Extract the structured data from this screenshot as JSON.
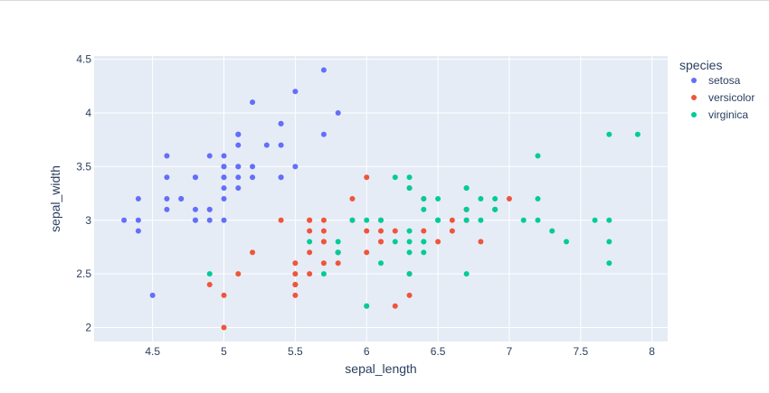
{
  "chart_data": {
    "type": "scatter",
    "title": "",
    "xlabel": "sepal_length",
    "ylabel": "sepal_width",
    "xlim": [
      4.09,
      8.11
    ],
    "ylim": [
      1.87,
      4.53
    ],
    "x_ticks": [
      "4.5",
      "5",
      "5.5",
      "6",
      "6.5",
      "7",
      "7.5",
      "8"
    ],
    "x_tick_values": [
      4.5,
      5,
      5.5,
      6,
      6.5,
      7,
      7.5,
      8
    ],
    "y_ticks": [
      "2",
      "2.5",
      "3",
      "3.5",
      "4",
      "4.5"
    ],
    "y_tick_values": [
      2,
      2.5,
      3,
      3.5,
      4,
      4.5
    ],
    "grid": true,
    "legend": {
      "title": "species",
      "position": "right"
    },
    "series": [
      {
        "name": "setosa",
        "color": "#636efa",
        "points": [
          [
            5.1,
            3.5
          ],
          [
            4.9,
            3.0
          ],
          [
            4.7,
            3.2
          ],
          [
            4.6,
            3.1
          ],
          [
            5.0,
            3.6
          ],
          [
            5.4,
            3.9
          ],
          [
            4.6,
            3.4
          ],
          [
            5.0,
            3.4
          ],
          [
            4.4,
            2.9
          ],
          [
            4.9,
            3.1
          ],
          [
            5.4,
            3.7
          ],
          [
            4.8,
            3.4
          ],
          [
            4.8,
            3.0
          ],
          [
            4.3,
            3.0
          ],
          [
            5.8,
            4.0
          ],
          [
            5.7,
            4.4
          ],
          [
            5.4,
            3.9
          ],
          [
            5.1,
            3.5
          ],
          [
            5.7,
            3.8
          ],
          [
            5.1,
            3.8
          ],
          [
            5.4,
            3.4
          ],
          [
            5.1,
            3.7
          ],
          [
            4.6,
            3.6
          ],
          [
            5.1,
            3.3
          ],
          [
            4.8,
            3.4
          ],
          [
            5.0,
            3.0
          ],
          [
            5.0,
            3.4
          ],
          [
            5.2,
            3.5
          ],
          [
            5.2,
            3.4
          ],
          [
            4.7,
            3.2
          ],
          [
            4.8,
            3.1
          ],
          [
            5.4,
            3.4
          ],
          [
            5.2,
            4.1
          ],
          [
            5.5,
            4.2
          ],
          [
            4.9,
            3.1
          ],
          [
            5.0,
            3.2
          ],
          [
            5.5,
            3.5
          ],
          [
            4.9,
            3.6
          ],
          [
            4.4,
            3.0
          ],
          [
            5.1,
            3.4
          ],
          [
            5.0,
            3.5
          ],
          [
            4.5,
            2.3
          ],
          [
            4.4,
            3.2
          ],
          [
            5.0,
            3.5
          ],
          [
            5.1,
            3.8
          ],
          [
            4.8,
            3.0
          ],
          [
            5.1,
            3.8
          ],
          [
            4.6,
            3.2
          ],
          [
            5.3,
            3.7
          ],
          [
            5.0,
            3.3
          ]
        ]
      },
      {
        "name": "versicolor",
        "color": "#EF553B",
        "points": [
          [
            7.0,
            3.2
          ],
          [
            6.4,
            3.2
          ],
          [
            6.9,
            3.1
          ],
          [
            5.5,
            2.3
          ],
          [
            6.5,
            2.8
          ],
          [
            5.7,
            2.8
          ],
          [
            6.3,
            3.3
          ],
          [
            4.9,
            2.4
          ],
          [
            6.6,
            2.9
          ],
          [
            5.2,
            2.7
          ],
          [
            5.0,
            2.0
          ],
          [
            5.9,
            3.0
          ],
          [
            6.0,
            2.2
          ],
          [
            6.1,
            2.9
          ],
          [
            5.6,
            2.9
          ],
          [
            6.7,
            3.1
          ],
          [
            5.6,
            3.0
          ],
          [
            5.8,
            2.7
          ],
          [
            6.2,
            2.2
          ],
          [
            5.6,
            2.5
          ],
          [
            5.9,
            3.2
          ],
          [
            6.1,
            2.8
          ],
          [
            6.3,
            2.5
          ],
          [
            6.1,
            2.8
          ],
          [
            6.4,
            2.9
          ],
          [
            6.6,
            3.0
          ],
          [
            6.8,
            2.8
          ],
          [
            6.7,
            3.0
          ],
          [
            6.0,
            2.9
          ],
          [
            5.7,
            2.6
          ],
          [
            5.5,
            2.4
          ],
          [
            5.5,
            2.4
          ],
          [
            5.8,
            2.7
          ],
          [
            6.0,
            2.7
          ],
          [
            5.4,
            3.0
          ],
          [
            6.0,
            3.4
          ],
          [
            6.7,
            3.1
          ],
          [
            6.3,
            2.3
          ],
          [
            5.6,
            3.0
          ],
          [
            5.5,
            2.5
          ],
          [
            5.5,
            2.6
          ],
          [
            6.1,
            3.0
          ],
          [
            5.8,
            2.6
          ],
          [
            5.0,
            2.3
          ],
          [
            5.6,
            2.7
          ],
          [
            5.7,
            3.0
          ],
          [
            5.7,
            2.9
          ],
          [
            6.2,
            2.9
          ],
          [
            5.1,
            2.5
          ],
          [
            5.7,
            2.8
          ]
        ]
      },
      {
        "name": "virginica",
        "color": "#00cc96",
        "points": [
          [
            6.3,
            3.3
          ],
          [
            5.8,
            2.7
          ],
          [
            7.1,
            3.0
          ],
          [
            6.3,
            2.9
          ],
          [
            6.5,
            3.0
          ],
          [
            7.6,
            3.0
          ],
          [
            4.9,
            2.5
          ],
          [
            7.3,
            2.9
          ],
          [
            6.7,
            2.5
          ],
          [
            7.2,
            3.6
          ],
          [
            6.5,
            3.2
          ],
          [
            6.4,
            2.7
          ],
          [
            6.8,
            3.0
          ],
          [
            5.7,
            2.5
          ],
          [
            5.8,
            2.8
          ],
          [
            6.4,
            3.2
          ],
          [
            6.5,
            3.0
          ],
          [
            7.7,
            3.8
          ],
          [
            7.7,
            2.6
          ],
          [
            6.0,
            2.2
          ],
          [
            6.9,
            3.2
          ],
          [
            5.6,
            2.8
          ],
          [
            7.7,
            2.8
          ],
          [
            6.3,
            2.7
          ],
          [
            6.7,
            3.3
          ],
          [
            7.2,
            3.2
          ],
          [
            6.2,
            2.8
          ],
          [
            6.1,
            3.0
          ],
          [
            6.4,
            2.8
          ],
          [
            7.2,
            3.0
          ],
          [
            7.4,
            2.8
          ],
          [
            7.9,
            3.8
          ],
          [
            6.4,
            2.8
          ],
          [
            6.3,
            2.8
          ],
          [
            6.1,
            2.6
          ],
          [
            7.7,
            3.0
          ],
          [
            6.3,
            3.4
          ],
          [
            6.4,
            3.1
          ],
          [
            6.0,
            3.0
          ],
          [
            6.9,
            3.1
          ],
          [
            6.7,
            3.1
          ],
          [
            6.9,
            3.1
          ],
          [
            5.8,
            2.7
          ],
          [
            6.8,
            3.2
          ],
          [
            6.7,
            3.3
          ],
          [
            6.7,
            3.0
          ],
          [
            6.3,
            2.5
          ],
          [
            6.5,
            3.0
          ],
          [
            6.2,
            3.4
          ],
          [
            5.9,
            3.0
          ]
        ]
      }
    ]
  }
}
